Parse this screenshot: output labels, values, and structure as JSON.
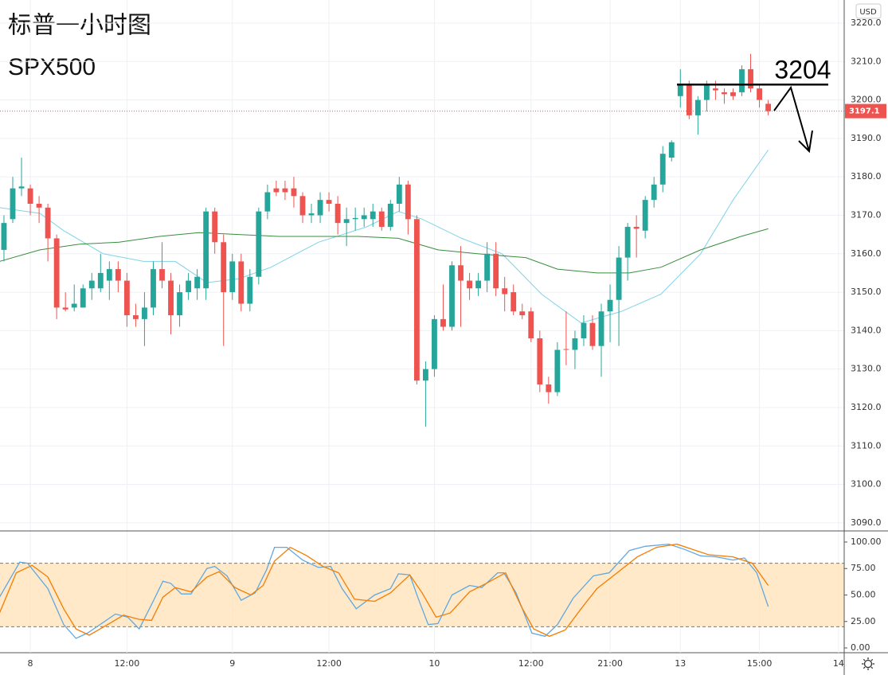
{
  "chart_data": [
    {
      "type": "candlestick",
      "title": "标普一小时图",
      "subtitle": "SPX500",
      "currency": "USD",
      "up_color": "#26a69a",
      "down_color": "#ef5350",
      "grid": true,
      "level": 3204,
      "last_price": 3197.1,
      "xlim": [
        -0.45,
        95.65
      ],
      "ylim": [
        3087.9,
        3226.0
      ],
      "yticks": [
        {
          "value": 3090,
          "label": "3090.0"
        },
        {
          "value": 3100,
          "label": "3100.0"
        },
        {
          "value": 3110,
          "label": "3110.0"
        },
        {
          "value": 3120,
          "label": "3120.0"
        },
        {
          "value": 3130,
          "label": "3130.0"
        },
        {
          "value": 3140,
          "label": "3140.0"
        },
        {
          "value": 3150,
          "label": "3150.0"
        },
        {
          "value": 3160,
          "label": "3160.0"
        },
        {
          "value": 3170,
          "label": "3170.0"
        },
        {
          "value": 3180,
          "label": "3180.0"
        },
        {
          "value": 3190,
          "label": "3190.0"
        },
        {
          "value": 3200,
          "label": "3200.0"
        },
        {
          "value": 3210,
          "label": "3210.0"
        },
        {
          "value": 3220,
          "label": "3220.0"
        }
      ],
      "xticks": [
        {
          "value": 3,
          "label": "8"
        },
        {
          "value": 14,
          "label": "12:00"
        },
        {
          "value": 26,
          "label": "9"
        },
        {
          "value": 37,
          "label": "12:00"
        },
        {
          "value": 49,
          "label": "10"
        },
        {
          "value": 60,
          "label": "12:00"
        },
        {
          "value": 69,
          "label": "21:00"
        },
        {
          "value": 77,
          "label": "13"
        },
        {
          "value": 86,
          "label": "15:00"
        },
        {
          "value": 95,
          "label": "14"
        }
      ],
      "ohlc": [
        [
          3161,
          3170,
          3158,
          3168
        ],
        [
          3169,
          3180,
          3168,
          3177
        ],
        [
          3177,
          3185,
          3175,
          3177.5
        ],
        [
          3177,
          3178,
          3170,
          3173
        ],
        [
          3173,
          3175,
          3168,
          3172
        ],
        [
          3172,
          3173,
          3158,
          3164
        ],
        [
          3164,
          3165,
          3143,
          3146
        ],
        [
          3146,
          3150,
          3145,
          3145.5
        ],
        [
          3146,
          3152,
          3145,
          3147
        ],
        [
          3146,
          3152,
          3146,
          3151
        ],
        [
          3151,
          3155,
          3148,
          3153
        ],
        [
          3151,
          3160,
          3150,
          3155
        ],
        [
          3153,
          3158,
          3148,
          3156
        ],
        [
          3156,
          3158,
          3150,
          3153
        ],
        [
          3153,
          3155,
          3141,
          3144
        ],
        [
          3144,
          3147,
          3141,
          3143
        ],
        [
          3143,
          3150,
          3136,
          3146
        ],
        [
          3146,
          3158,
          3144,
          3156
        ],
        [
          3156,
          3163,
          3151,
          3153
        ],
        [
          3153,
          3155,
          3139,
          3144
        ],
        [
          3144,
          3152,
          3141,
          3150
        ],
        [
          3150,
          3155,
          3148,
          3153
        ],
        [
          3151,
          3156,
          3148,
          3154
        ],
        [
          3151,
          3172,
          3148,
          3171
        ],
        [
          3171,
          3172,
          3160,
          3163
        ],
        [
          3163,
          3165,
          3136,
          3150
        ],
        [
          3150,
          3160,
          3148,
          3158
        ],
        [
          3158,
          3160,
          3145,
          3147
        ],
        [
          3147,
          3156,
          3145,
          3154
        ],
        [
          3154,
          3172,
          3152,
          3171
        ],
        [
          3171,
          3178,
          3169,
          3176
        ],
        [
          3177,
          3179,
          3175,
          3176
        ],
        [
          3177,
          3179,
          3174,
          3176
        ],
        [
          3177,
          3180,
          3172,
          3175
        ],
        [
          3175,
          3176,
          3168,
          3170
        ],
        [
          3170,
          3173,
          3168,
          3170.5
        ],
        [
          3170,
          3176,
          3168,
          3174
        ],
        [
          3174,
          3176,
          3171,
          3173
        ],
        [
          3173,
          3175,
          3165,
          3168
        ],
        [
          3168,
          3172,
          3162,
          3169
        ],
        [
          3169,
          3172,
          3166,
          3169.3
        ],
        [
          3169,
          3172,
          3167,
          3170
        ],
        [
          3169,
          3173,
          3167,
          3171
        ],
        [
          3171,
          3172,
          3166,
          3167
        ],
        [
          3167,
          3174,
          3166,
          3173
        ],
        [
          3173,
          3180,
          3171,
          3178
        ],
        [
          3178,
          3179,
          3165,
          3169
        ],
        [
          3169,
          3170,
          3126,
          3127
        ],
        [
          3127,
          3132,
          3115,
          3130
        ],
        [
          3130,
          3144,
          3128,
          3143
        ],
        [
          3143,
          3152,
          3140,
          3141
        ],
        [
          3141,
          3158,
          3140,
          3157
        ],
        [
          3157,
          3162,
          3141,
          3153
        ],
        [
          3153,
          3155,
          3148,
          3151
        ],
        [
          3151,
          3155,
          3149,
          3153
        ],
        [
          3153,
          3163,
          3150,
          3160
        ],
        [
          3160,
          3163,
          3149,
          3151
        ],
        [
          3151,
          3154,
          3145,
          3149.5
        ],
        [
          3150,
          3152,
          3144,
          3145
        ],
        [
          3145,
          3147,
          3143,
          3144
        ],
        [
          3145,
          3146,
          3137,
          3138
        ],
        [
          3138,
          3140,
          3124,
          3126
        ],
        [
          3126,
          3128,
          3121,
          3124
        ],
        [
          3124,
          3137,
          3123,
          3135
        ],
        [
          3135.2,
          3145,
          3131,
          3135
        ],
        [
          3135,
          3140,
          3130,
          3138
        ],
        [
          3138,
          3144,
          3136,
          3142
        ],
        [
          3142,
          3144,
          3135,
          3136
        ],
        [
          3136,
          3147,
          3128,
          3145
        ],
        [
          3145,
          3152,
          3137,
          3148
        ],
        [
          3148,
          3162,
          3136,
          3159
        ],
        [
          3159,
          3168,
          3153,
          3167
        ],
        [
          3167,
          3170,
          3159,
          3166.5
        ],
        [
          3166,
          3175,
          3164,
          3174
        ],
        [
          3174,
          3180,
          3172,
          3178
        ],
        [
          3178,
          3188,
          3176,
          3186
        ],
        [
          3185,
          3189.5,
          3184,
          3189
        ],
        [
          3201,
          3208,
          3198,
          3204
        ],
        [
          3204,
          3205,
          3195,
          3196
        ],
        [
          3196,
          3201,
          3191,
          3200
        ],
        [
          3200,
          3205,
          3197,
          3204
        ],
        [
          3203,
          3205,
          3200,
          3202.5
        ],
        [
          3202,
          3203,
          3199,
          3201.5
        ],
        [
          3202,
          3203,
          3200,
          3201
        ],
        [
          3202,
          3209,
          3201,
          3208
        ],
        [
          3208,
          3212,
          3202,
          3203
        ],
        [
          3203,
          3204,
          3198,
          3200
        ],
        [
          3199,
          3200,
          3196,
          3197.1
        ]
      ],
      "lines": [
        {
          "color": "#7fd3e8",
          "x": [
            -0.5,
            4.1,
            6.8,
            11.3,
            15.9,
            19.5,
            23.1,
            26.7,
            30.4,
            35.8,
            41.3,
            44.9,
            47.6,
            52.1,
            56.7,
            61.2,
            65.7,
            70.3,
            74.8,
            79.3,
            83.0,
            87.0
          ],
          "values": [
            3172,
            3170.5,
            3166,
            3160,
            3158,
            3158,
            3152.5,
            3153.5,
            3156.5,
            3163,
            3167,
            3171,
            3169,
            3164,
            3160,
            3149.5,
            3142,
            3145,
            3149.5,
            3160,
            3174,
            3187
          ]
        },
        {
          "color": "#388e3c",
          "x": [
            -0.5,
            4.1,
            8.6,
            13.1,
            17.7,
            22.2,
            26.7,
            31.3,
            40.3,
            44.9,
            49.4,
            53.9,
            59.4,
            63.0,
            67.5,
            71.2,
            74.8,
            79.3,
            83.9,
            87.0
          ],
          "values": [
            3158,
            3161,
            3162.5,
            3163,
            3164.5,
            3165.5,
            3165,
            3164.5,
            3164.5,
            3164,
            3161,
            3160,
            3159,
            3156,
            3155,
            3155,
            3156.5,
            3161,
            3164.5,
            3166.5
          ]
        }
      ]
    },
    {
      "type": "line",
      "xlim": [
        -0.45,
        95.65
      ],
      "ylim": [
        -4.5,
        110.5
      ],
      "bands": [
        20,
        80
      ],
      "band_color": "#ffe0b2",
      "yticks": [
        {
          "value": 0,
          "label": "0.00"
        },
        {
          "value": 25,
          "label": "25.00"
        },
        {
          "value": 50,
          "label": "50.00"
        },
        {
          "value": 75,
          "label": "75.00"
        },
        {
          "value": 100,
          "label": "100.00"
        }
      ],
      "series": [
        {
          "color": "#5fa8e0",
          "x": [
            -0.5,
            1.8,
            2.7,
            5.0,
            6.8,
            8.2,
            9.5,
            12.7,
            14.1,
            15.4,
            16.8,
            18.1,
            19.0,
            20.2,
            21.3,
            23.1,
            24.0,
            25.4,
            27.0,
            28.6,
            29.9,
            30.8,
            32.2,
            34.0,
            35.8,
            37.2,
            38.5,
            40.1,
            42.2,
            44.0,
            44.9,
            46.2,
            47.1,
            48.3,
            49.4,
            51.0,
            53.0,
            54.4,
            56.2,
            56.9,
            58.3,
            60.1,
            61.6,
            63.0,
            64.8,
            67.1,
            68.9,
            71.2,
            73.0,
            75.7,
            77.5,
            79.3,
            81.1,
            83.0,
            84.3,
            85.7,
            87.0
          ],
          "values": [
            48,
            81,
            80,
            56,
            22,
            9,
            14,
            32,
            29,
            18,
            41,
            63,
            61,
            51,
            51,
            75,
            77,
            68,
            45,
            52,
            74,
            95,
            95,
            83,
            76,
            77,
            56,
            37,
            50,
            56,
            70,
            69,
            48,
            22,
            23,
            50,
            59,
            57,
            71,
            71,
            52,
            14,
            11,
            22,
            47,
            68,
            71,
            92,
            96,
            98,
            93,
            87,
            86,
            83,
            85,
            71,
            39
          ]
        },
        {
          "color": "#f57c00",
          "x": [
            -0.5,
            1.4,
            3.2,
            5.0,
            6.8,
            8.2,
            9.7,
            11.8,
            13.6,
            15.4,
            16.8,
            18.1,
            19.5,
            21.3,
            23.1,
            24.5,
            26.3,
            28.1,
            29.5,
            30.8,
            32.6,
            34.5,
            36.3,
            38.1,
            39.9,
            42.2,
            44.0,
            46.2,
            47.6,
            49.2,
            50.8,
            53.0,
            54.9,
            57.1,
            58.9,
            60.3,
            62.1,
            63.9,
            65.7,
            67.5,
            69.8,
            72.1,
            74.3,
            76.6,
            78.4,
            80.2,
            83.0,
            85.2,
            87.0
          ],
          "values": [
            33,
            71,
            78,
            67,
            37,
            18,
            12,
            22,
            31,
            27,
            26,
            48,
            57,
            53,
            67,
            72,
            57,
            50,
            59,
            82,
            95,
            87,
            77,
            71,
            46,
            44,
            52,
            69,
            52,
            29,
            33,
            53,
            61,
            71,
            39,
            18,
            11,
            17,
            37,
            56,
            71,
            86,
            95,
            98,
            93,
            88,
            86,
            80,
            59
          ]
        }
      ]
    }
  ]
}
